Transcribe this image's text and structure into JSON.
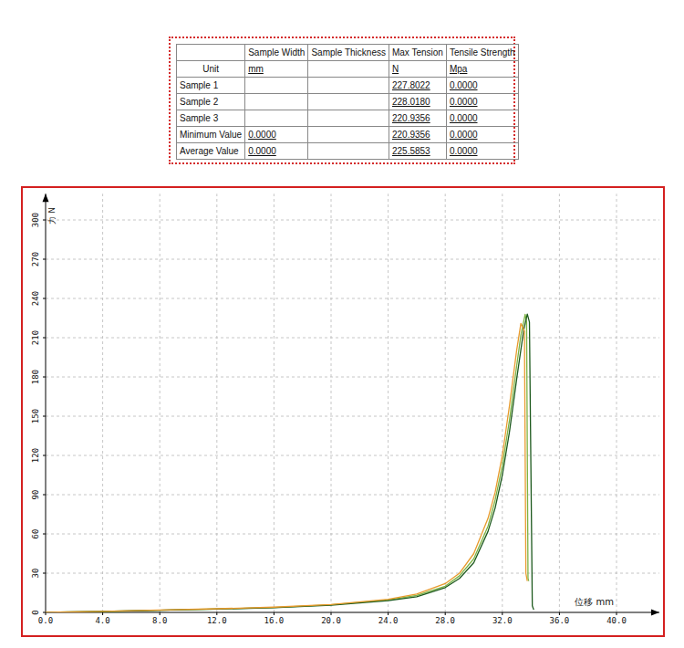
{
  "table": {
    "columns": [
      null,
      "Sample Width",
      "Sample Thickness",
      "Max Tension",
      "Tensile Strength"
    ],
    "rows": [
      [
        "Unit",
        "mm",
        null,
        "N",
        "Mpa"
      ],
      [
        "Sample 1",
        null,
        null,
        "227.8022",
        "0.0000"
      ],
      [
        "Sample 2",
        null,
        null,
        "228.0180",
        "0.0000"
      ],
      [
        "Sample 3",
        null,
        null,
        "220.9356",
        "0.0000"
      ],
      [
        "Minimum Value",
        "0.0000",
        null,
        "220.9356",
        "0.0000"
      ],
      [
        "Average Value",
        "0.0000",
        null,
        "225.5853",
        "0.0000"
      ]
    ]
  },
  "chart_data": {
    "type": "line",
    "xlabel": "位移 mm",
    "ylabel": "力 N",
    "xlim": [
      0,
      43
    ],
    "ylim": [
      0,
      320
    ],
    "xticks": [
      {
        "value": 0,
        "label": "0.0"
      },
      {
        "value": 4,
        "label": "4.0"
      },
      {
        "value": 8,
        "label": "8.0"
      },
      {
        "value": 12,
        "label": "12.0"
      },
      {
        "value": 16,
        "label": "16.0"
      },
      {
        "value": 20,
        "label": "20.0"
      },
      {
        "value": 24,
        "label": "24.0"
      },
      {
        "value": 28,
        "label": "28.0"
      },
      {
        "value": 32,
        "label": "32.0"
      },
      {
        "value": 36,
        "label": "36.0"
      },
      {
        "value": 40,
        "label": "40.0"
      }
    ],
    "yticks": [
      0,
      30,
      60,
      90,
      120,
      150,
      180,
      210,
      240,
      270,
      300
    ],
    "grid": true,
    "series": [
      {
        "color": "#7cb342",
        "x": [
          0,
          4,
          8,
          12,
          16,
          20,
          24,
          26,
          28,
          29,
          30,
          31,
          31.5,
          32,
          32.5,
          33,
          33.3,
          33.6,
          33.7,
          33.8,
          33.85
        ],
        "values": [
          0,
          0.7,
          1.7,
          2.6,
          3.8,
          5.8,
          9.5,
          13,
          20,
          28,
          41,
          66,
          86,
          112,
          147,
          188,
          212,
          227.8,
          222,
          26,
          24
        ]
      },
      {
        "color": "#1e5a1e",
        "x": [
          0,
          4,
          8,
          12,
          16,
          20,
          24,
          26,
          28,
          29,
          30,
          31,
          31.5,
          32,
          32.5,
          33,
          33.5,
          33.75,
          33.9,
          34.1,
          34.2
        ],
        "values": [
          0,
          0.7,
          1.6,
          2.5,
          3.6,
          5.5,
          9,
          12,
          19,
          26,
          38,
          62,
          80,
          105,
          138,
          178,
          216,
          228,
          222,
          5,
          2
        ]
      },
      {
        "color": "#e89a2c",
        "x": [
          0,
          4,
          8,
          12,
          16,
          20,
          24,
          26,
          28,
          29,
          30,
          31,
          31.5,
          32,
          32.5,
          33,
          33.3,
          33.55,
          33.65,
          33.75
        ],
        "values": [
          0,
          0.8,
          1.8,
          2.8,
          4,
          6,
          10,
          14,
          22,
          30,
          45,
          72,
          92,
          120,
          158,
          200,
          220.9,
          215,
          30,
          24
        ]
      }
    ]
  }
}
